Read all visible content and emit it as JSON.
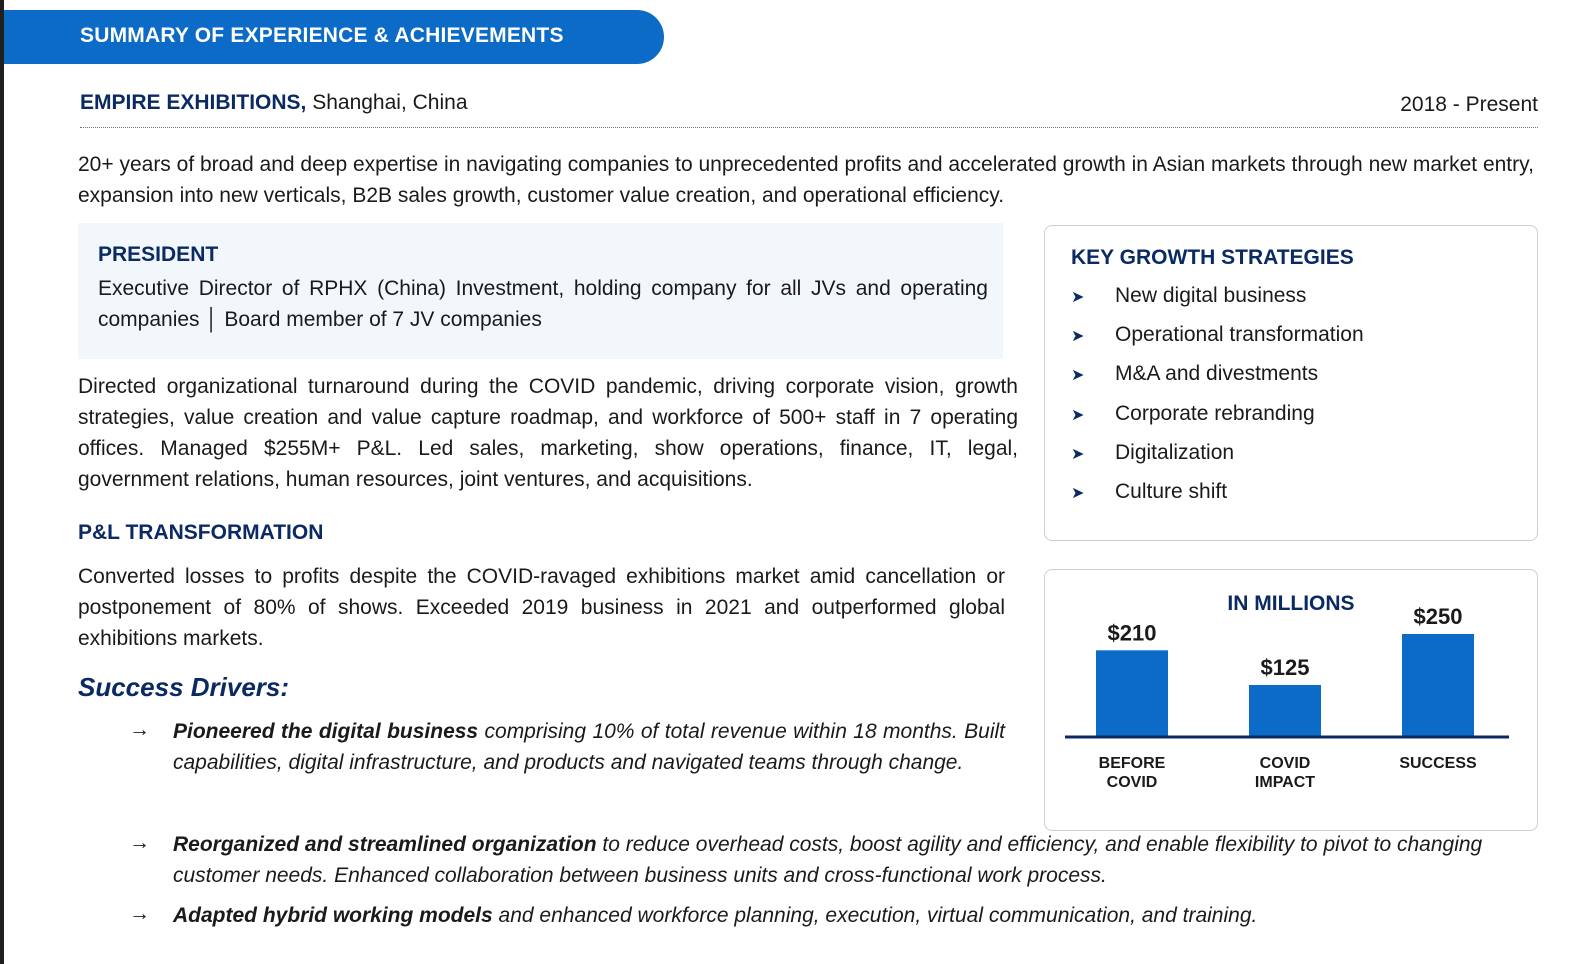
{
  "header": {
    "title": "SUMMARY OF EXPERIENCE & ACHIEVEMENTS"
  },
  "company": {
    "name": "EMPIRE EXHIBITIONS,",
    "location": " Shanghai, China",
    "period": "2018 - Present"
  },
  "intro": "20+ years of broad and deep expertise in navigating companies to unprecedented profits and accelerated growth in Asian markets through new market entry, expansion into new verticals, B2B sales growth, customer value creation, and operational efficiency.",
  "president": {
    "title": "PRESIDENT",
    "description": "Executive Director of RPHX (China) Investment, holding company for all JVs and operating companies │ Board member of 7 JV companies"
  },
  "directed": "Directed organizational turnaround during the COVID pandemic, driving corporate vision, growth strategies, value creation and value capture roadmap, and workforce of 500+ staff in 7 operating offices. Managed $255M+ P&L. Led sales, marketing, show operations, finance, IT, legal, government relations, human resources, joint ventures, and acquisitions.",
  "pl": {
    "heading": "P&L TRANSFORMATION",
    "description": "Converted losses to profits despite the COVID-ravaged exhibitions market amid cancellation or postponement of 80% of shows. Exceeded 2019 business in 2021 and outperformed global exhibitions markets."
  },
  "drivers": {
    "heading": "Success Drivers:",
    "arrow": "→",
    "items": [
      {
        "bold": "Pioneered the digital business",
        "text": " comprising 10% of total revenue within 18 months. Built capabilities, digital infrastructure, and products and navigated teams through change."
      },
      {
        "bold": "Reorganized and streamlined organization",
        "text": " to reduce overhead costs, boost agility and efficiency, and enable flexibility to pivot to changing customer needs. Enhanced collaboration between business units and cross-functional work process."
      },
      {
        "bold": "Adapted hybrid working models",
        "text": " and enhanced workforce planning, execution, virtual communication, and training."
      }
    ]
  },
  "strategies": {
    "title": "KEY GROWTH STRATEGIES",
    "bullet": "➤",
    "items": [
      "New digital business",
      "Operational transformation",
      "M&A and divestments",
      "Corporate rebranding",
      "Digitalization",
      "Culture shift"
    ]
  },
  "chart_data": {
    "type": "bar",
    "title": "IN MILLIONS",
    "categories": [
      [
        "BEFORE",
        "COVID"
      ],
      [
        "COVID",
        "IMPACT"
      ],
      [
        "SUCCESS"
      ]
    ],
    "values": [
      210,
      125,
      250
    ],
    "labels": [
      "$210",
      "$125",
      "$250"
    ],
    "ylim": [
      0,
      250
    ],
    "xlabel": "",
    "ylabel": "",
    "grid": false,
    "bar_color": "#0c6bc6"
  },
  "colors": {
    "accent": "#0c6bc6",
    "navy": "#0b2a63"
  }
}
